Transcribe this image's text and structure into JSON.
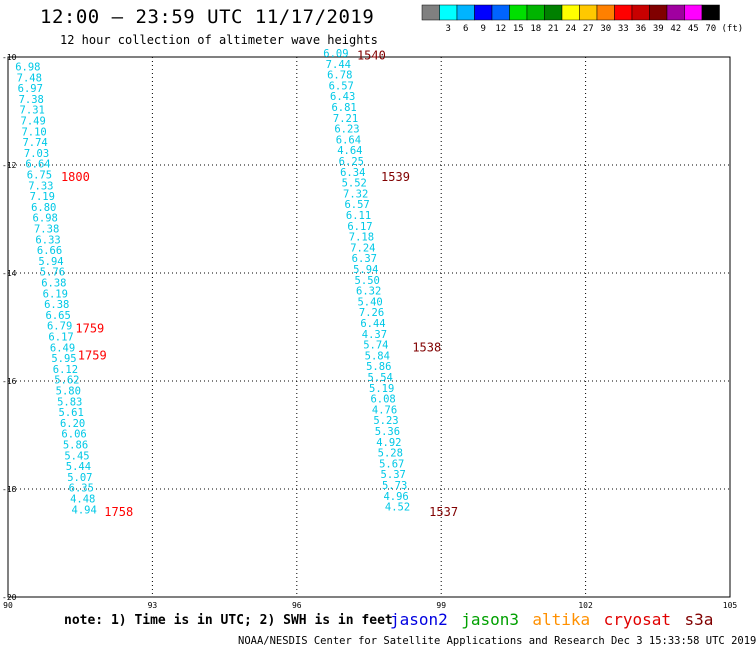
{
  "title": "12:00 – 23:59 UTC 11/17/2019",
  "subtitle": "12 hour collection of altimeter wave heights",
  "legend": {
    "unit": "(ft)",
    "items": [
      {
        "label": "",
        "color": "#808080"
      },
      {
        "label": "3",
        "color": "#00ffff"
      },
      {
        "label": "6",
        "color": "#00b4ff"
      },
      {
        "label": "9",
        "color": "#0000ff"
      },
      {
        "label": "12",
        "color": "#0064ff"
      },
      {
        "label": "15",
        "color": "#00e000"
      },
      {
        "label": "18",
        "color": "#00b400"
      },
      {
        "label": "21",
        "color": "#008000"
      },
      {
        "label": "24",
        "color": "#ffff00"
      },
      {
        "label": "27",
        "color": "#ffc800"
      },
      {
        "label": "30",
        "color": "#ff8000"
      },
      {
        "label": "33",
        "color": "#ff0000"
      },
      {
        "label": "36",
        "color": "#c80000"
      },
      {
        "label": "39",
        "color": "#800000"
      },
      {
        "label": "42",
        "color": "#a000a0"
      },
      {
        "label": "45",
        "color": "#ff00ff"
      },
      {
        "label": "70",
        "color": "#000000"
      }
    ]
  },
  "map": {
    "x_ticks": [
      "90",
      "93",
      "96",
      "99",
      "102",
      "105"
    ],
    "y_ticks": [
      "-10",
      "-12",
      "-14",
      "-16",
      "-18",
      "-20"
    ],
    "lon_range": [
      90,
      105
    ],
    "lat_range": [
      -20,
      -10
    ]
  },
  "tracks": [
    {
      "id": "track-left",
      "color": "#00c8e6",
      "points": [
        {
          "lon": 90.15,
          "lat": -10.25,
          "v": "6.98"
        },
        {
          "lon": 90.18,
          "lat": -10.45,
          "v": "7.48"
        },
        {
          "lon": 90.2,
          "lat": -10.65,
          "v": "6.97"
        },
        {
          "lon": 90.22,
          "lat": -10.85,
          "v": "7.38"
        },
        {
          "lon": 90.24,
          "lat": -11.05,
          "v": "7.31"
        },
        {
          "lon": 90.26,
          "lat": -11.25,
          "v": "7.49"
        },
        {
          "lon": 90.28,
          "lat": -11.45,
          "v": "7.10"
        },
        {
          "lon": 90.3,
          "lat": -11.65,
          "v": "7.74"
        },
        {
          "lon": 90.33,
          "lat": -11.85,
          "v": "7.03"
        },
        {
          "lon": 90.36,
          "lat": -12.05,
          "v": "6.64"
        },
        {
          "lon": 90.39,
          "lat": -12.25,
          "v": "6.75"
        },
        {
          "lon": 90.42,
          "lat": -12.45,
          "v": "7.33"
        },
        {
          "lon": 90.45,
          "lat": -12.65,
          "v": "7.19"
        },
        {
          "lon": 90.48,
          "lat": -12.85,
          "v": "6.80"
        },
        {
          "lon": 90.51,
          "lat": -13.05,
          "v": "6.98"
        },
        {
          "lon": 90.54,
          "lat": -13.25,
          "v": "7.38"
        },
        {
          "lon": 90.57,
          "lat": -13.45,
          "v": "6.33"
        },
        {
          "lon": 90.6,
          "lat": -13.65,
          "v": "6.66"
        },
        {
          "lon": 90.63,
          "lat": -13.85,
          "v": "5.94"
        },
        {
          "lon": 90.66,
          "lat": -14.05,
          "v": "5.76"
        },
        {
          "lon": 90.69,
          "lat": -14.25,
          "v": "6.38"
        },
        {
          "lon": 90.72,
          "lat": -14.45,
          "v": "6.19"
        },
        {
          "lon": 90.75,
          "lat": -14.65,
          "v": "6.38"
        },
        {
          "lon": 90.78,
          "lat": -14.85,
          "v": "6.65"
        },
        {
          "lon": 90.81,
          "lat": -15.05,
          "v": "6.79"
        },
        {
          "lon": 90.84,
          "lat": -15.25,
          "v": "6.17"
        },
        {
          "lon": 90.87,
          "lat": -15.45,
          "v": "6.49"
        },
        {
          "lon": 90.9,
          "lat": -15.65,
          "v": "5.95"
        },
        {
          "lon": 90.93,
          "lat": -15.85,
          "v": "6.12"
        },
        {
          "lon": 90.96,
          "lat": -16.05,
          "v": "5.62"
        },
        {
          "lon": 90.99,
          "lat": -16.25,
          "v": "5.80"
        },
        {
          "lon": 91.02,
          "lat": -16.45,
          "v": "5.83"
        },
        {
          "lon": 91.05,
          "lat": -16.65,
          "v": "5.61"
        },
        {
          "lon": 91.08,
          "lat": -16.85,
          "v": "6.20"
        },
        {
          "lon": 91.11,
          "lat": -17.05,
          "v": "6.06"
        },
        {
          "lon": 91.14,
          "lat": -17.25,
          "v": "5.86"
        },
        {
          "lon": 91.17,
          "lat": -17.45,
          "v": "5.45"
        },
        {
          "lon": 91.2,
          "lat": -17.65,
          "v": "5.44"
        },
        {
          "lon": 91.23,
          "lat": -17.85,
          "v": "5.07"
        },
        {
          "lon": 91.26,
          "lat": -18.05,
          "v": "6.35"
        },
        {
          "lon": 91.29,
          "lat": -18.25,
          "v": "4.48"
        },
        {
          "lon": 91.32,
          "lat": -18.45,
          "v": "4.94"
        }
      ]
    },
    {
      "id": "track-right",
      "color": "#00c8e6",
      "points": [
        {
          "lon": 96.55,
          "lat": -10.0,
          "v": "6.09"
        },
        {
          "lon": 96.6,
          "lat": -10.2,
          "v": "7.44"
        },
        {
          "lon": 96.63,
          "lat": -10.4,
          "v": "6.78"
        },
        {
          "lon": 96.66,
          "lat": -10.6,
          "v": "6.57"
        },
        {
          "lon": 96.69,
          "lat": -10.8,
          "v": "6.43"
        },
        {
          "lon": 96.72,
          "lat": -11.0,
          "v": "6.81"
        },
        {
          "lon": 96.75,
          "lat": -11.2,
          "v": "7.21"
        },
        {
          "lon": 96.78,
          "lat": -11.4,
          "v": "6.23"
        },
        {
          "lon": 96.81,
          "lat": -11.6,
          "v": "6.64"
        },
        {
          "lon": 96.84,
          "lat": -11.8,
          "v": "4.64"
        },
        {
          "lon": 96.87,
          "lat": -12.0,
          "v": "6.25"
        },
        {
          "lon": 96.9,
          "lat": -12.2,
          "v": "6.34"
        },
        {
          "lon": 96.93,
          "lat": -12.4,
          "v": "5.52"
        },
        {
          "lon": 96.96,
          "lat": -12.6,
          "v": "7.32"
        },
        {
          "lon": 96.99,
          "lat": -12.8,
          "v": "6.57"
        },
        {
          "lon": 97.02,
          "lat": -13.0,
          "v": "6.11"
        },
        {
          "lon": 97.05,
          "lat": -13.2,
          "v": "6.17"
        },
        {
          "lon": 97.08,
          "lat": -13.4,
          "v": "7.18"
        },
        {
          "lon": 97.11,
          "lat": -13.6,
          "v": "7.24"
        },
        {
          "lon": 97.14,
          "lat": -13.8,
          "v": "6.37"
        },
        {
          "lon": 97.17,
          "lat": -14.0,
          "v": "5.94"
        },
        {
          "lon": 97.2,
          "lat": -14.2,
          "v": "5.50"
        },
        {
          "lon": 97.23,
          "lat": -14.4,
          "v": "6.32"
        },
        {
          "lon": 97.26,
          "lat": -14.6,
          "v": "5.40"
        },
        {
          "lon": 97.29,
          "lat": -14.8,
          "v": "7.26"
        },
        {
          "lon": 97.32,
          "lat": -15.0,
          "v": "6.44"
        },
        {
          "lon": 97.35,
          "lat": -15.2,
          "v": "4.37"
        },
        {
          "lon": 97.38,
          "lat": -15.4,
          "v": "5.74"
        },
        {
          "lon": 97.41,
          "lat": -15.6,
          "v": "5.84"
        },
        {
          "lon": 97.44,
          "lat": -15.8,
          "v": "5.86"
        },
        {
          "lon": 97.47,
          "lat": -16.0,
          "v": "5.54"
        },
        {
          "lon": 97.5,
          "lat": -16.2,
          "v": "5.19"
        },
        {
          "lon": 97.53,
          "lat": -16.4,
          "v": "6.08"
        },
        {
          "lon": 97.56,
          "lat": -16.6,
          "v": "4.76"
        },
        {
          "lon": 97.59,
          "lat": -16.8,
          "v": "5.23"
        },
        {
          "lon": 97.62,
          "lat": -17.0,
          "v": "5.36"
        },
        {
          "lon": 97.65,
          "lat": -17.2,
          "v": "4.92"
        },
        {
          "lon": 97.68,
          "lat": -17.4,
          "v": "5.28"
        },
        {
          "lon": 97.71,
          "lat": -17.6,
          "v": "5.67"
        },
        {
          "lon": 97.74,
          "lat": -17.8,
          "v": "5.37"
        },
        {
          "lon": 97.77,
          "lat": -18.0,
          "v": "5.73"
        },
        {
          "lon": 97.8,
          "lat": -18.2,
          "v": "4.96"
        },
        {
          "lon": 97.83,
          "lat": -18.4,
          "v": "4.52"
        }
      ]
    }
  ],
  "time_labels": [
    {
      "text": "1540",
      "lon": 97.25,
      "lat": -10.05,
      "color": "#800000"
    },
    {
      "text": "1539",
      "lon": 97.75,
      "lat": -12.3,
      "color": "#800000"
    },
    {
      "text": "1538",
      "lon": 98.4,
      "lat": -15.45,
      "color": "#800000"
    },
    {
      "text": "1537",
      "lon": 98.75,
      "lat": -18.5,
      "color": "#800000"
    },
    {
      "text": "1800",
      "lon": 91.1,
      "lat": -12.3,
      "color": "#ff0000"
    },
    {
      "text": "1759",
      "lon": 91.4,
      "lat": -15.1,
      "color": "#ff0000"
    },
    {
      "text": "1759",
      "lon": 91.45,
      "lat": -15.6,
      "color": "#ff0000"
    },
    {
      "text": "1758",
      "lon": 92.0,
      "lat": -18.5,
      "color": "#ff0000"
    }
  ],
  "footer": {
    "note": "note: 1) Time is in UTC; 2) SWH is in feet",
    "credit": "NOAA/NESDIS Center for Satellite Applications and Research   Dec  3 15:33:58 UTC 2019",
    "satellites": [
      {
        "label": "jason2",
        "color": "#0000e0"
      },
      {
        "label": "jason3",
        "color": "#00a000"
      },
      {
        "label": "altika",
        "color": "#ff9000"
      },
      {
        "label": "cryosat",
        "color": "#e00000"
      },
      {
        "label": "s3a",
        "color": "#800000"
      }
    ]
  }
}
